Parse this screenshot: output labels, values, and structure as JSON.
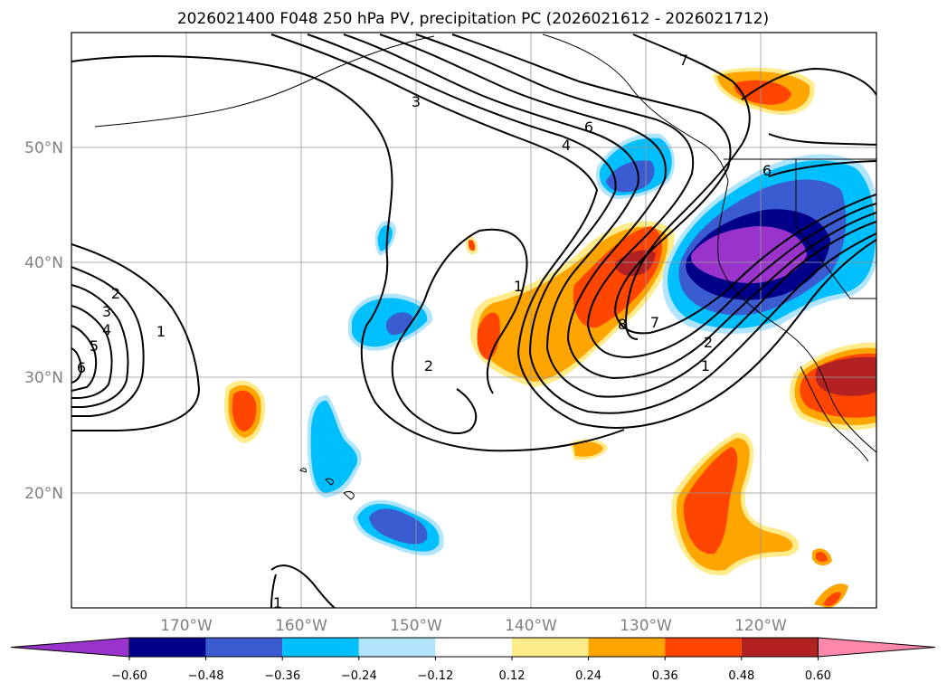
{
  "title": "2026021400 F048 250 hPa PV, precipitation PC (2026021612 - 2026021712)",
  "lat_labels": [
    "50°N",
    "40°N",
    "30°N",
    "20°N"
  ],
  "lon_labels": [
    "170°W",
    "160°W",
    "150°W",
    "140°W",
    "130°W",
    "120°W"
  ],
  "contour_labels": [
    "3",
    "6",
    "4",
    "2",
    "3",
    "4",
    "5",
    "6",
    "1",
    "2",
    "1",
    "8",
    "7",
    "2",
    "1",
    "6",
    "7",
    "1"
  ],
  "colorbar": {
    "ticks": [
      "−0.60",
      "−0.48",
      "−0.36",
      "−0.24",
      "−0.12",
      "0.12",
      "0.24",
      "0.36",
      "0.48",
      "0.60"
    ],
    "colors": [
      "#9933cc",
      "#00008b",
      "#3b5bd0",
      "#00bfff",
      "#b0e4ff",
      "#ffffff",
      "#ffeb8a",
      "#ffa500",
      "#ff4500",
      "#b22222",
      "#ff88aa"
    ]
  },
  "colors": {
    "purple": "#9933cc",
    "navy": "#00008b",
    "royal": "#3b5bd0",
    "sky": "#00bfff",
    "lightblue": "#b0e4ff",
    "lightyellow": "#ffeb8a",
    "orange": "#ffa500",
    "redorange": "#ff4500",
    "firebrick": "#b22222",
    "pink": "#ff88aa"
  }
}
